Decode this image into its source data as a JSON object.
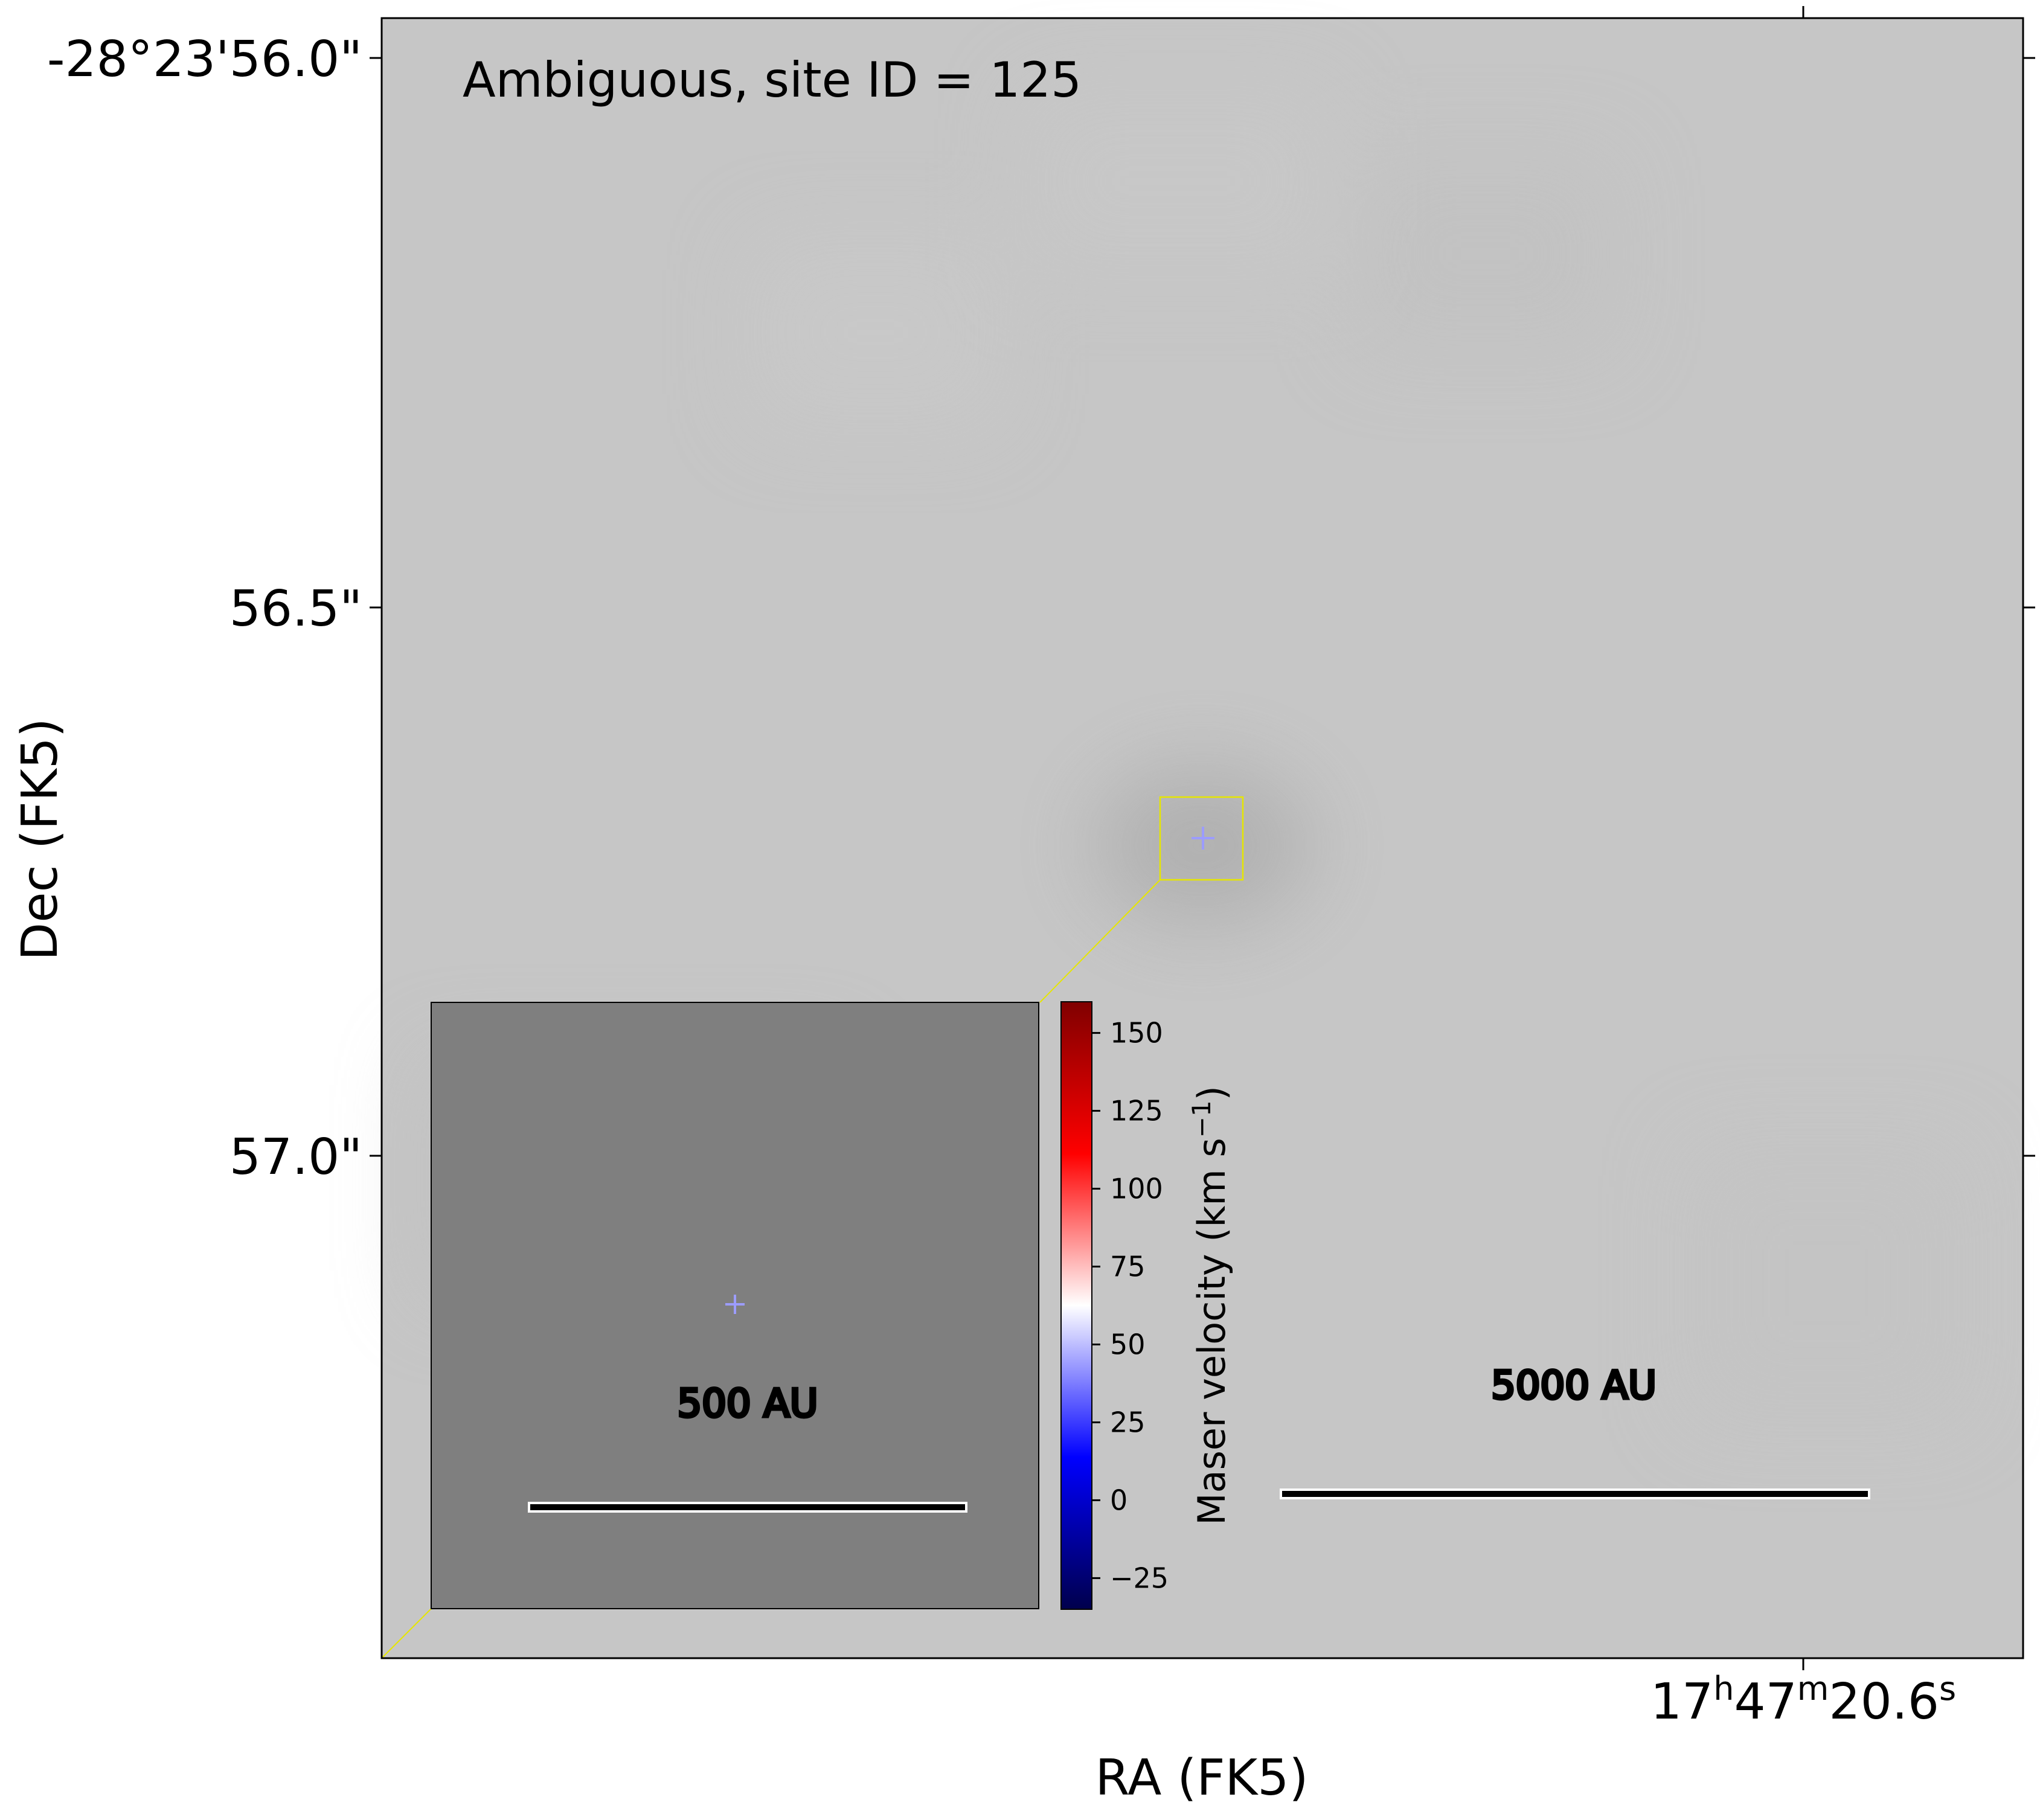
{
  "chart_data": {
    "type": "image",
    "annotation": "Ambiguous, site ID = 125",
    "xlabel": "RA (FK5)",
    "ylabel": "Dec (FK5)",
    "x_ticks": [
      {
        "h": "17",
        "m": "47",
        "s": "20.6"
      }
    ],
    "y_ticks": [
      "-28°23'56.0\"",
      "56.5\"",
      "57.0\""
    ],
    "image_background": "#c6c6c6",
    "inset": {
      "background": "#7f7f7f",
      "scalebar_label": "500 AU"
    },
    "scalebar_label": "5000 AU",
    "maser_position_marker": {
      "color": "#9c9cff"
    },
    "zoom_box_color": "#e6e600",
    "colorbar": {
      "label_prefix": "Maser velocity (km s",
      "label_exp": "−1",
      "label_suffix": ")",
      "cmap": "seismic",
      "colors": [
        "#00004c",
        "#0000ff",
        "#ffffff",
        "#ff0000",
        "#800000"
      ],
      "vmin": -35,
      "vmax": 160,
      "ticks": [
        -25,
        0,
        25,
        50,
        75,
        100,
        125,
        150
      ],
      "tick_labels": [
        "−25",
        "0",
        "25",
        "50",
        "75",
        "100",
        "125",
        "150"
      ]
    }
  }
}
